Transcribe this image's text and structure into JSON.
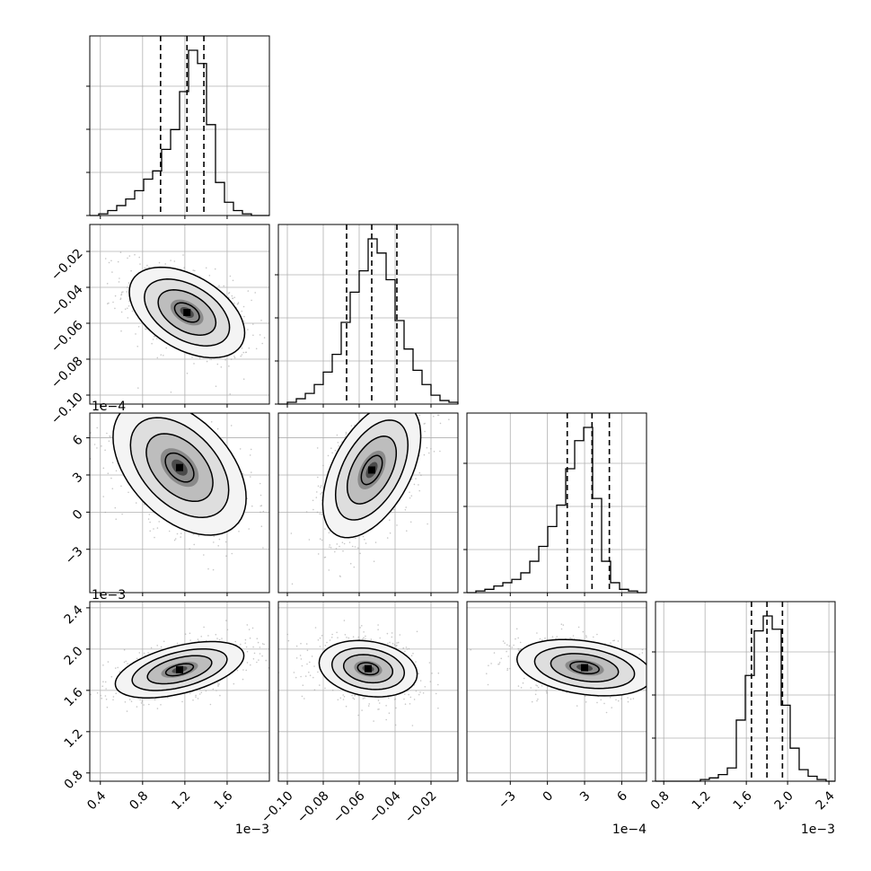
{
  "chart_data": {
    "type": "corner",
    "grid": true,
    "parameters": [
      {
        "range": [
          0.3,
          2.0
        ],
        "ticks": [
          0.4,
          0.8,
          1.2,
          1.6
        ],
        "tick_labels": [
          "0.4",
          "0.8",
          "1.2",
          "1.6"
        ],
        "offset_label": "1e−3",
        "median": 1.22,
        "q16": 0.97,
        "q84": 1.38
      },
      {
        "range": [
          -0.105,
          -0.005
        ],
        "ticks": [
          -0.1,
          -0.08,
          -0.06,
          -0.04,
          -0.02
        ],
        "tick_labels": [
          "−0.10",
          "−0.08",
          "−0.06",
          "−0.04",
          "−0.02"
        ],
        "offset_label": "",
        "median": -0.053,
        "q16": -0.067,
        "q84": -0.039
      },
      {
        "range": [
          -6.5,
          8
        ],
        "ticks": [
          -3,
          0,
          3,
          6
        ],
        "tick_labels": [
          "−3",
          "0",
          "3",
          "6"
        ],
        "offset_label": "1e−4",
        "median": 3.6,
        "q16": 1.6,
        "q84": 5.0
      },
      {
        "range": [
          0.72,
          2.46
        ],
        "ticks": [
          0.8,
          1.2,
          1.6,
          2.0,
          2.4
        ],
        "tick_labels": [
          "0.8",
          "1.2",
          "1.6",
          "2.0",
          "2.4"
        ],
        "offset_label": "1e−3",
        "median": 1.8,
        "q16": 1.65,
        "q84": 1.95
      }
    ],
    "histograms": [
      {
        "edges_start": 0.3,
        "bin_width": 0.085,
        "counts": [
          0,
          1,
          3,
          6,
          10,
          15,
          22,
          27,
          40,
          52,
          75,
          100,
          92,
          55,
          20,
          8,
          3,
          1,
          0,
          0
        ]
      },
      {
        "edges_start": -0.105,
        "bin_width": 0.005,
        "counts": [
          0,
          1,
          3,
          6,
          11,
          18,
          28,
          46,
          63,
          75,
          93,
          85,
          70,
          47,
          31,
          19,
          11,
          5,
          2,
          1
        ]
      },
      {
        "edges_start": -6.5,
        "bin_width": 0.725,
        "counts": [
          0,
          1,
          2,
          4,
          6,
          8,
          12,
          19,
          28,
          40,
          53,
          75,
          92,
          100,
          57,
          19,
          6,
          2,
          1,
          0
        ]
      },
      {
        "edges_start": 0.72,
        "bin_width": 0.087,
        "counts": [
          0,
          0,
          0,
          0,
          0,
          1,
          2,
          4,
          8,
          37,
          64,
          91,
          100,
          92,
          46,
          20,
          7,
          3,
          1,
          0
        ]
      }
    ],
    "pairs": [
      {
        "row": 1,
        "col": 0,
        "center": [
          1.22,
          -0.054
        ],
        "sigma": [
          0.26,
          0.012
        ],
        "rho": -0.45
      },
      {
        "row": 2,
        "col": 0,
        "center": [
          1.15,
          3.6
        ],
        "sigma": [
          0.3,
          2.6
        ],
        "rho": -0.45
      },
      {
        "row": 2,
        "col": 1,
        "center": [
          -0.053,
          3.4
        ],
        "sigma": [
          0.013,
          2.6
        ],
        "rho": 0.5
      },
      {
        "row": 3,
        "col": 0,
        "center": [
          1.15,
          1.8
        ],
        "sigma": [
          0.29,
          0.13
        ],
        "rho": 0.5
      },
      {
        "row": 3,
        "col": 1,
        "center": [
          -0.055,
          1.81
        ],
        "sigma": [
          0.013,
          0.13
        ],
        "rho": -0.2
      },
      {
        "row": 3,
        "col": 2,
        "center": [
          3.0,
          1.82
        ],
        "sigma": [
          2.6,
          0.13
        ],
        "rho": -0.3
      }
    ]
  }
}
